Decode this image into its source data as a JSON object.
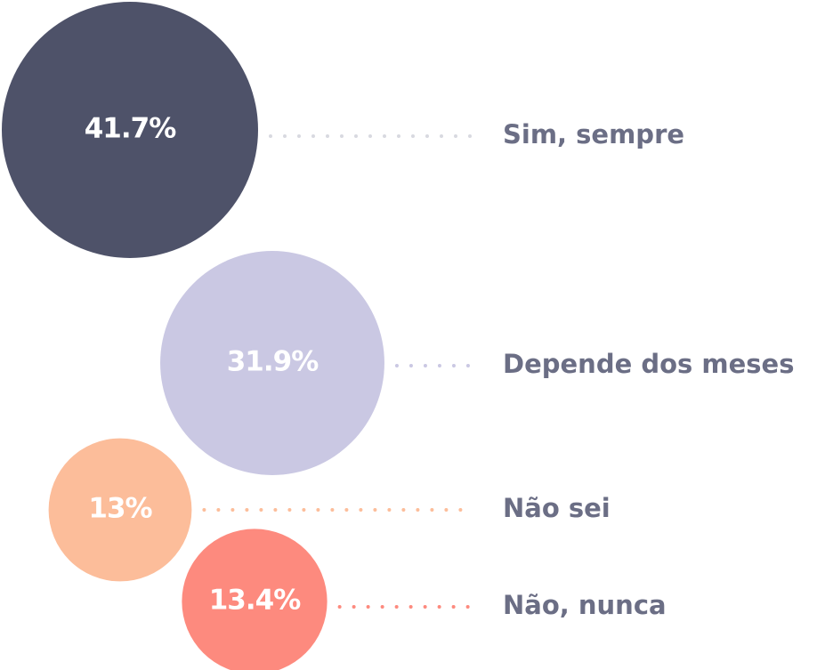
{
  "chart_data": {
    "type": "bubble",
    "categories": [
      "Sim, sempre",
      "Depende dos meses",
      "Não sei",
      "Não, nunca"
    ],
    "values": [
      41.7,
      31.9,
      13,
      13.4
    ],
    "value_labels": [
      "41.7%",
      "31.9%",
      "13%",
      "13.4%"
    ],
    "colors": [
      "#4e5269",
      "#cac8e3",
      "#fcbd9a",
      "#fd8a7e"
    ]
  }
}
